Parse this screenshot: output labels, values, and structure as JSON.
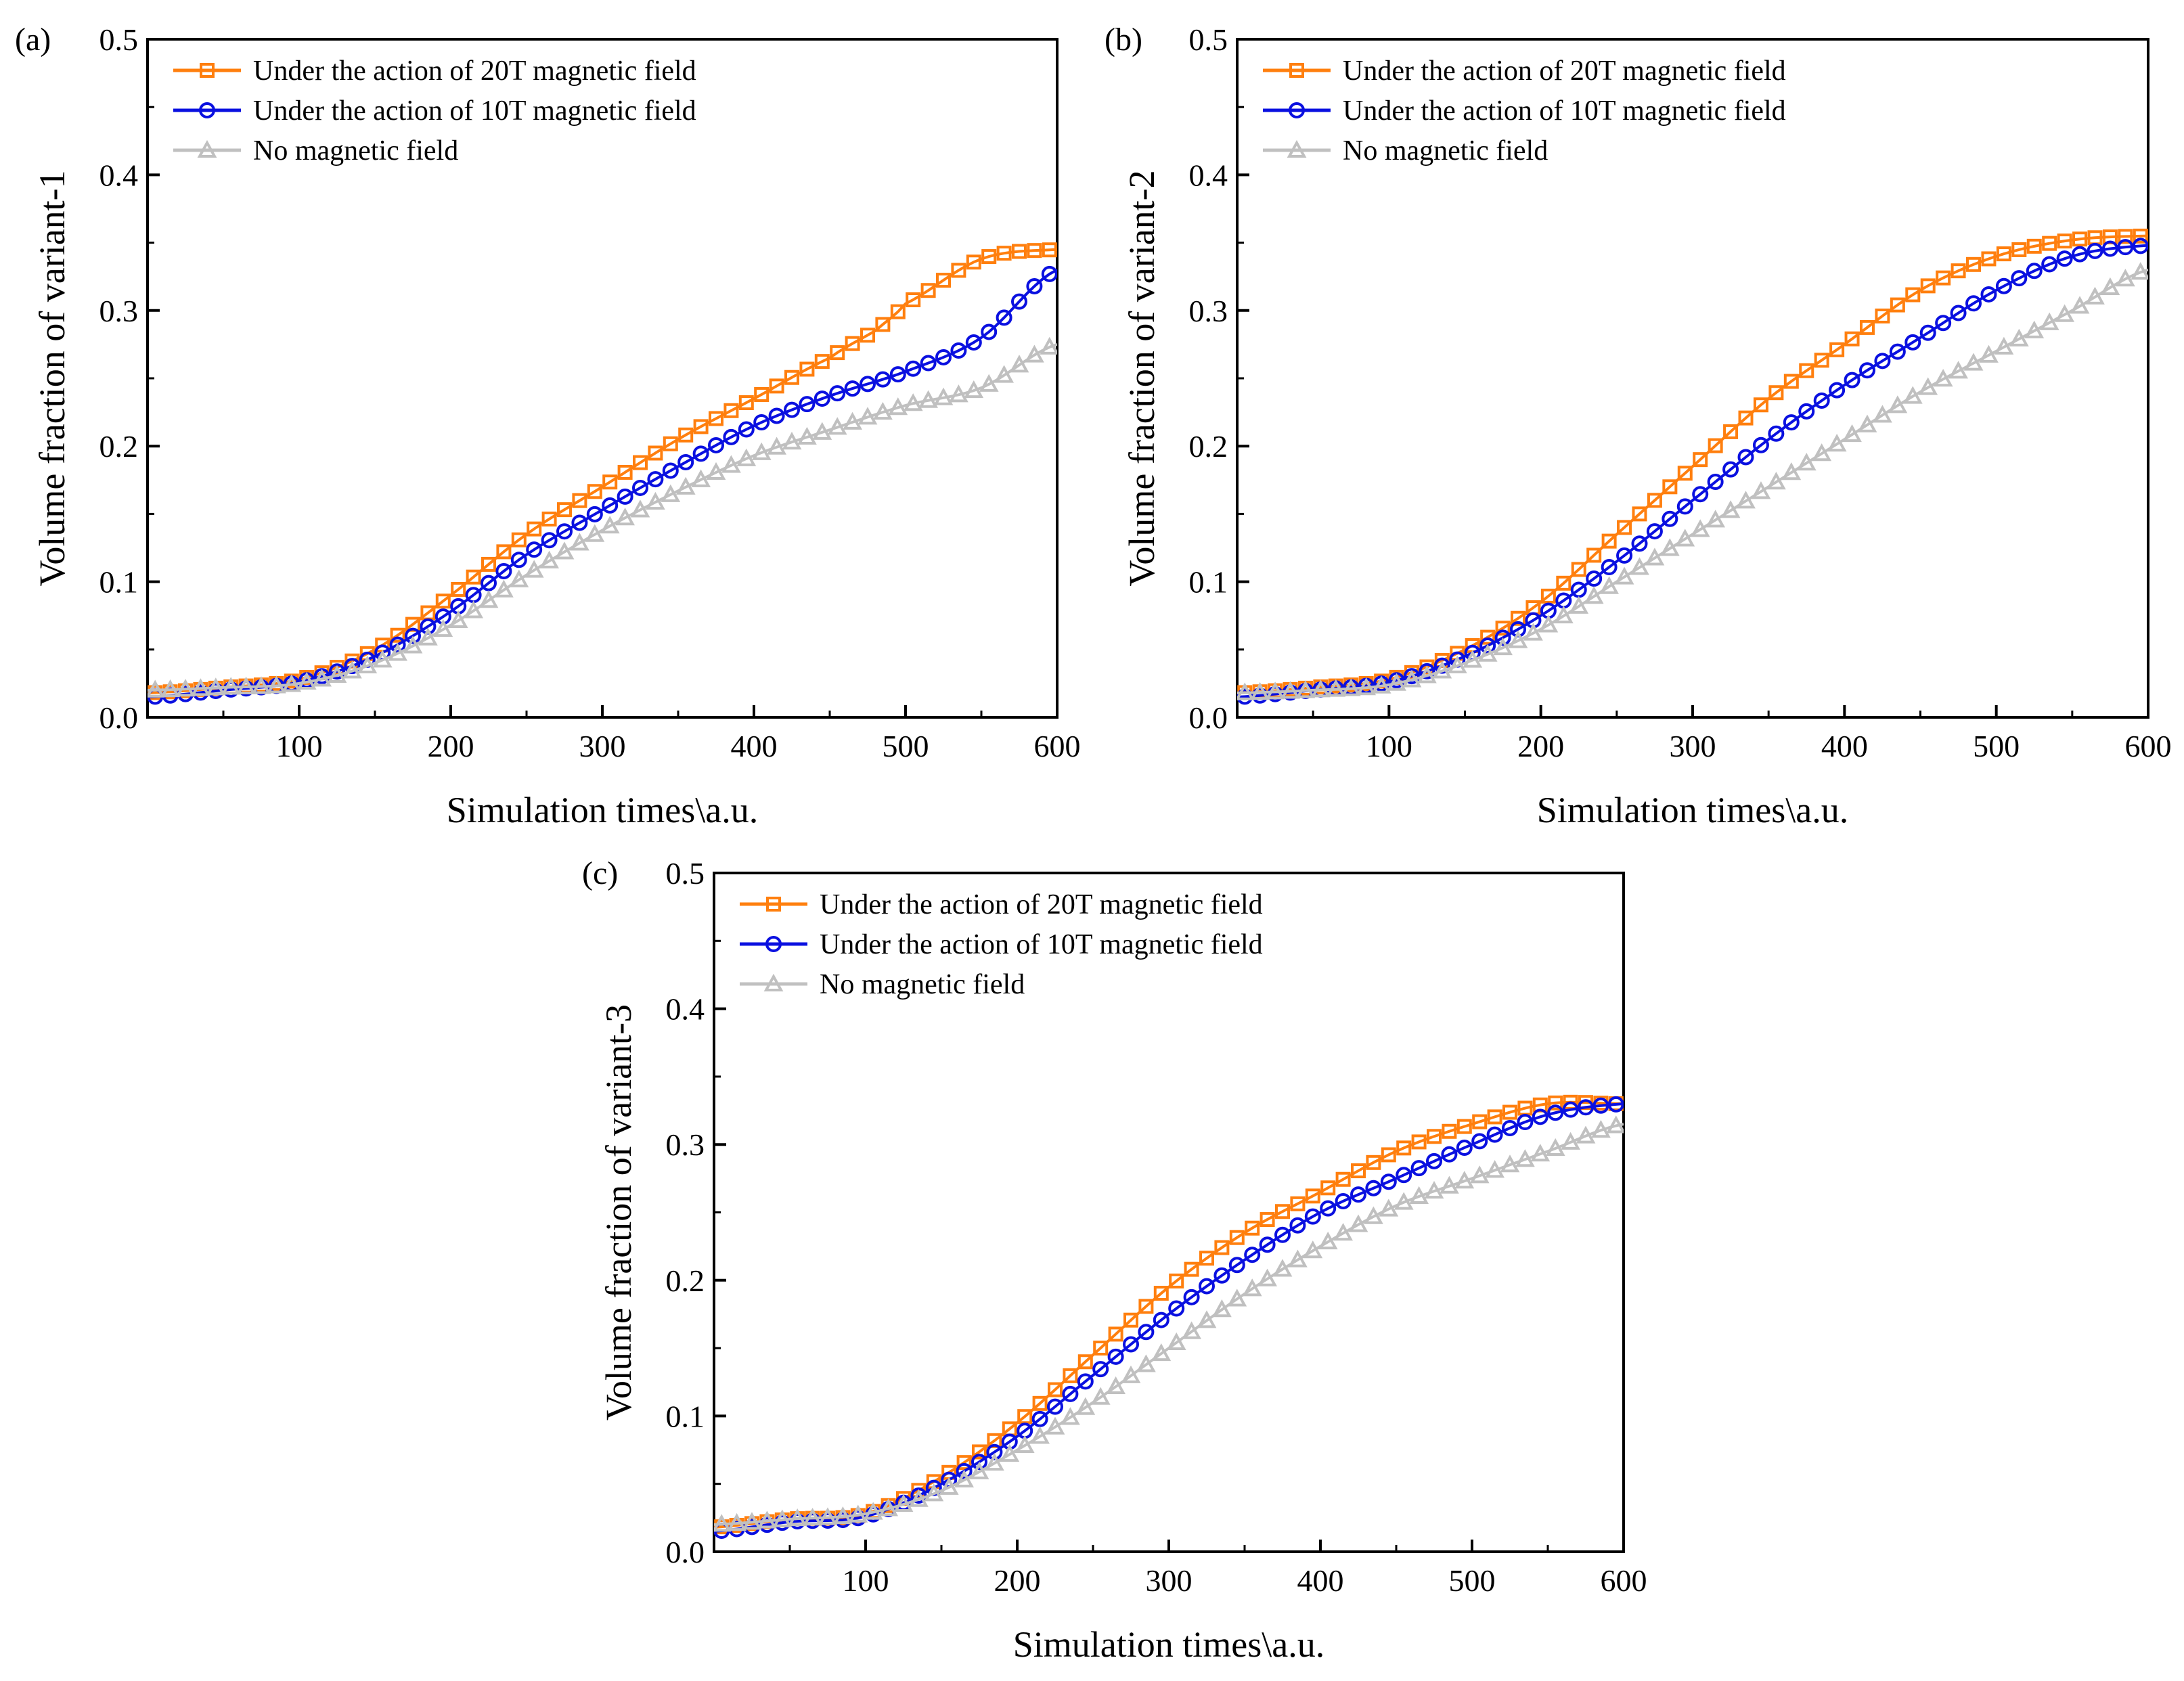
{
  "figure": {
    "description_free": true
  },
  "chart_data": [
    {
      "type": "line",
      "panel_label": "(a)",
      "title": "",
      "xlabel": "Simulation  times\\a.u.",
      "ylabel": "Volume fraction of variant-1",
      "xlim": [
        0,
        600
      ],
      "ylim": [
        0,
        0.5
      ],
      "xticks": [
        100,
        200,
        300,
        400,
        500,
        600
      ],
      "xtick_labels": [
        "100",
        "200",
        "300",
        "400",
        "500",
        "600"
      ],
      "yticks": [
        0.0,
        0.1,
        0.2,
        0.3,
        0.4,
        0.5
      ],
      "ytick_labels": [
        "0.0",
        "0.1",
        "0.2",
        "0.3",
        "0.4",
        "0.5"
      ],
      "legend_position": "top-left",
      "series": [
        {
          "name": "Under the action of 20T magnetic field",
          "color": "#ff7f0e",
          "marker": "square",
          "x": [
            0,
            50,
            100,
            150,
            200,
            250,
            300,
            350,
            400,
            450,
            480,
            500,
            550,
            600
          ],
          "y": [
            0.018,
            0.022,
            0.028,
            0.05,
            0.09,
            0.135,
            0.17,
            0.205,
            0.235,
            0.265,
            0.285,
            0.305,
            0.338,
            0.345
          ]
        },
        {
          "name": "Under the action of 10T magnetic field",
          "color": "#0a10e0",
          "marker": "circle",
          "x": [
            0,
            50,
            100,
            150,
            200,
            250,
            300,
            350,
            400,
            450,
            500,
            550,
            600
          ],
          "y": [
            0.015,
            0.02,
            0.026,
            0.045,
            0.078,
            0.12,
            0.153,
            0.185,
            0.215,
            0.237,
            0.255,
            0.28,
            0.33
          ]
        },
        {
          "name": "No magnetic field",
          "color": "#c0c0c0",
          "marker": "triangle",
          "x": [
            0,
            50,
            100,
            150,
            200,
            250,
            300,
            350,
            400,
            450,
            500,
            550,
            600
          ],
          "y": [
            0.02,
            0.022,
            0.025,
            0.04,
            0.068,
            0.105,
            0.138,
            0.167,
            0.193,
            0.212,
            0.23,
            0.243,
            0.275
          ]
        }
      ]
    },
    {
      "type": "line",
      "panel_label": "(b)",
      "title": "",
      "xlabel": "Simulation  times\\a.u.",
      "ylabel": "Volume fraction of variant-2",
      "xlim": [
        0,
        600
      ],
      "ylim": [
        0,
        0.5
      ],
      "xticks": [
        100,
        200,
        300,
        400,
        500,
        600
      ],
      "xtick_labels": [
        "100",
        "200",
        "300",
        "400",
        "500",
        "600"
      ],
      "yticks": [
        0.0,
        0.1,
        0.2,
        0.3,
        0.4,
        0.5
      ],
      "ytick_labels": [
        "0.0",
        "0.1",
        "0.2",
        "0.3",
        "0.4",
        "0.5"
      ],
      "legend_position": "top-left",
      "series": [
        {
          "name": "Under the action of 20T magnetic field",
          "color": "#ff7f0e",
          "marker": "square",
          "x": [
            0,
            50,
            100,
            150,
            200,
            250,
            300,
            350,
            400,
            450,
            500,
            550,
            600
          ],
          "y": [
            0.018,
            0.022,
            0.028,
            0.05,
            0.085,
            0.135,
            0.185,
            0.235,
            0.275,
            0.315,
            0.34,
            0.352,
            0.355
          ]
        },
        {
          "name": "Under the action of 10T magnetic field",
          "color": "#0a10e0",
          "marker": "circle",
          "x": [
            0,
            50,
            100,
            150,
            200,
            250,
            300,
            350,
            400,
            450,
            500,
            550,
            600
          ],
          "y": [
            0.015,
            0.02,
            0.026,
            0.045,
            0.075,
            0.115,
            0.16,
            0.205,
            0.245,
            0.28,
            0.315,
            0.34,
            0.348
          ]
        },
        {
          "name": "No magnetic field",
          "color": "#c0c0c0",
          "marker": "triangle",
          "x": [
            0,
            50,
            100,
            150,
            200,
            250,
            300,
            350,
            400,
            450,
            500,
            550,
            600
          ],
          "y": [
            0.018,
            0.02,
            0.024,
            0.04,
            0.065,
            0.1,
            0.135,
            0.17,
            0.205,
            0.24,
            0.27,
            0.3,
            0.33
          ]
        }
      ]
    },
    {
      "type": "line",
      "panel_label": "(c)",
      "title": "",
      "xlabel": "Simulation  times\\a.u.",
      "ylabel": "Volume fraction of variant-3",
      "xlim": [
        0,
        600
      ],
      "ylim": [
        0,
        0.5
      ],
      "xticks": [
        100,
        200,
        300,
        400,
        500,
        600
      ],
      "xtick_labels": [
        "100",
        "200",
        "300",
        "400",
        "500",
        "600"
      ],
      "yticks": [
        0.0,
        0.1,
        0.2,
        0.3,
        0.4,
        0.5
      ],
      "ytick_labels": [
        "0.0",
        "0.1",
        "0.2",
        "0.3",
        "0.4",
        "0.5"
      ],
      "legend_position": "top-left",
      "series": [
        {
          "name": "Under the action of 20T magnetic field",
          "color": "#ff7f0e",
          "marker": "square",
          "x": [
            0,
            50,
            100,
            150,
            200,
            250,
            300,
            350,
            400,
            450,
            500,
            550,
            600
          ],
          "y": [
            0.018,
            0.024,
            0.028,
            0.055,
            0.095,
            0.145,
            0.195,
            0.235,
            0.265,
            0.295,
            0.315,
            0.33,
            0.33
          ]
        },
        {
          "name": "Under the action of 10T magnetic field",
          "color": "#0a10e0",
          "marker": "circle",
          "x": [
            0,
            50,
            100,
            150,
            200,
            250,
            300,
            350,
            400,
            450,
            500,
            550,
            600
          ],
          "y": [
            0.015,
            0.022,
            0.026,
            0.05,
            0.085,
            0.13,
            0.175,
            0.215,
            0.25,
            0.275,
            0.3,
            0.322,
            0.33
          ]
        },
        {
          "name": "No magnetic field",
          "color": "#c0c0c0",
          "marker": "triangle",
          "x": [
            0,
            50,
            100,
            150,
            200,
            250,
            300,
            350,
            400,
            450,
            500,
            550,
            600
          ],
          "y": [
            0.02,
            0.024,
            0.028,
            0.045,
            0.075,
            0.11,
            0.15,
            0.19,
            0.225,
            0.255,
            0.275,
            0.295,
            0.315
          ]
        }
      ]
    }
  ]
}
